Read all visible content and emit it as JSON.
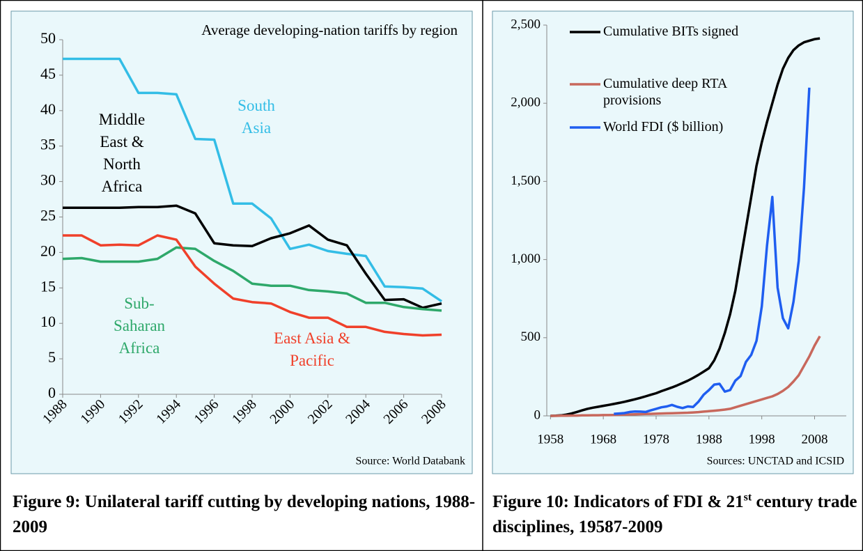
{
  "chart_data": [
    {
      "type": "line",
      "title": "Average developing-nation tariffs by region",
      "source": "Source: World Databank",
      "caption": "Figure 9: Unilateral tariff cutting by developing nations, 1988-2009",
      "x": [
        1988,
        1989,
        1990,
        1991,
        1992,
        1993,
        1994,
        1995,
        1996,
        1997,
        1998,
        1999,
        2000,
        2001,
        2002,
        2003,
        2004,
        2005,
        2006,
        2007,
        2008
      ],
      "xlim": [
        1988,
        2008
      ],
      "xticks": [
        1988,
        1990,
        1992,
        1994,
        1996,
        1998,
        2000,
        2002,
        2004,
        2006,
        2008
      ],
      "ylim": [
        0,
        50
      ],
      "yticks": [
        0,
        5,
        10,
        15,
        20,
        25,
        30,
        35,
        40,
        45,
        50
      ],
      "series": [
        {
          "name": "South Asia",
          "color": "#33bde6",
          "values": [
            47.3,
            47.3,
            47.3,
            47.3,
            42.5,
            42.5,
            42.3,
            36.0,
            35.9,
            26.9,
            26.9,
            24.8,
            20.5,
            21.1,
            20.2,
            19.8,
            19.5,
            15.2,
            15.1,
            14.9,
            13.1
          ]
        },
        {
          "name": "Middle East & North Africa",
          "color": "#000000",
          "values": [
            26.3,
            26.3,
            26.3,
            26.3,
            26.4,
            26.4,
            26.6,
            25.5,
            21.3,
            21.0,
            20.9,
            22.0,
            22.7,
            23.8,
            21.8,
            21.0,
            17.0,
            13.3,
            13.4,
            12.2,
            12.8
          ]
        },
        {
          "name": "Sub-Saharan Africa",
          "color": "#2ea86a",
          "values": [
            19.1,
            19.2,
            18.7,
            18.7,
            18.7,
            19.1,
            20.7,
            20.5,
            18.8,
            17.4,
            15.6,
            15.3,
            15.3,
            14.7,
            14.5,
            14.2,
            12.9,
            12.9,
            12.3,
            12.0,
            11.8
          ]
        },
        {
          "name": "East Asia & Pacific",
          "color": "#f0402a",
          "values": [
            22.4,
            22.4,
            21.0,
            21.1,
            21.0,
            22.4,
            21.8,
            18.0,
            15.6,
            13.5,
            13.0,
            12.8,
            11.6,
            10.8,
            10.8,
            9.5,
            9.5,
            8.8,
            8.5,
            8.3,
            8.4
          ]
        }
      ]
    },
    {
      "type": "line",
      "source": "Sources: UNCTAD and ICSID",
      "caption": [
        "Figure 10: Indicators of FDI & 21",
        "st",
        " century trade disciplines, 19587-2009"
      ],
      "legend": "upper left",
      "x": [
        1958,
        1959,
        1960,
        1961,
        1962,
        1963,
        1964,
        1965,
        1966,
        1967,
        1968,
        1969,
        1970,
        1971,
        1972,
        1973,
        1974,
        1975,
        1976,
        1977,
        1978,
        1979,
        1980,
        1981,
        1982,
        1983,
        1984,
        1985,
        1986,
        1987,
        1988,
        1989,
        1990,
        1991,
        1992,
        1993,
        1994,
        1995,
        1996,
        1997,
        1998,
        1999,
        2000,
        2001,
        2002,
        2003,
        2004,
        2005,
        2006,
        2007,
        2008,
        2009
      ],
      "xlim": [
        1957.3,
        2014
      ],
      "xticks": [
        1958,
        1968,
        1978,
        1988,
        1998,
        2008
      ],
      "ylim": [
        0,
        2500
      ],
      "yticks": [
        0,
        500,
        {
          "value": 1000,
          "label": "1,000"
        },
        {
          "value": 1500,
          "label": "1,500"
        },
        {
          "value": 2000,
          "label": "2,000"
        },
        {
          "value": 2500,
          "label": "2,500"
        }
      ],
      "series": [
        {
          "name": "Cumulative BITs signed",
          "color": "#000000",
          "values": [
            0,
            1,
            3,
            8,
            15,
            25,
            35,
            45,
            52,
            58,
            64,
            70,
            76,
            83,
            90,
            98,
            106,
            115,
            125,
            135,
            145,
            158,
            170,
            182,
            195,
            210,
            225,
            243,
            262,
            283,
            305,
            355,
            430,
            530,
            650,
            800,
            1000,
            1200,
            1400,
            1600,
            1750,
            1880,
            2000,
            2120,
            2220,
            2290,
            2340,
            2370,
            2390,
            2400,
            2410,
            2415
          ]
        },
        {
          "name": "Cumulative deep RTA provisions",
          "color": "#c8685c",
          "values": [
            0,
            0,
            1,
            1,
            2,
            2,
            3,
            3,
            4,
            4,
            5,
            5,
            6,
            7,
            8,
            9,
            10,
            11,
            12,
            13,
            14,
            15,
            16,
            17,
            18,
            19,
            20,
            22,
            24,
            27,
            30,
            33,
            36,
            40,
            45,
            55,
            65,
            75,
            85,
            95,
            105,
            115,
            125,
            140,
            160,
            185,
            220,
            260,
            320,
            380,
            450,
            510
          ]
        },
        {
          "name": "World FDI ($ billion)",
          "color": "#1f5ef0",
          "values": [
            null,
            null,
            null,
            null,
            null,
            null,
            null,
            null,
            null,
            null,
            null,
            null,
            13,
            15,
            18,
            25,
            28,
            27,
            25,
            35,
            45,
            55,
            60,
            70,
            58,
            50,
            60,
            57,
            90,
            135,
            165,
            200,
            205,
            155,
            165,
            225,
            255,
            345,
            390,
            480,
            700,
            1090,
            1400,
            820,
            625,
            560,
            730,
            990,
            1460,
            2100,
            null,
            null
          ]
        }
      ]
    }
  ]
}
